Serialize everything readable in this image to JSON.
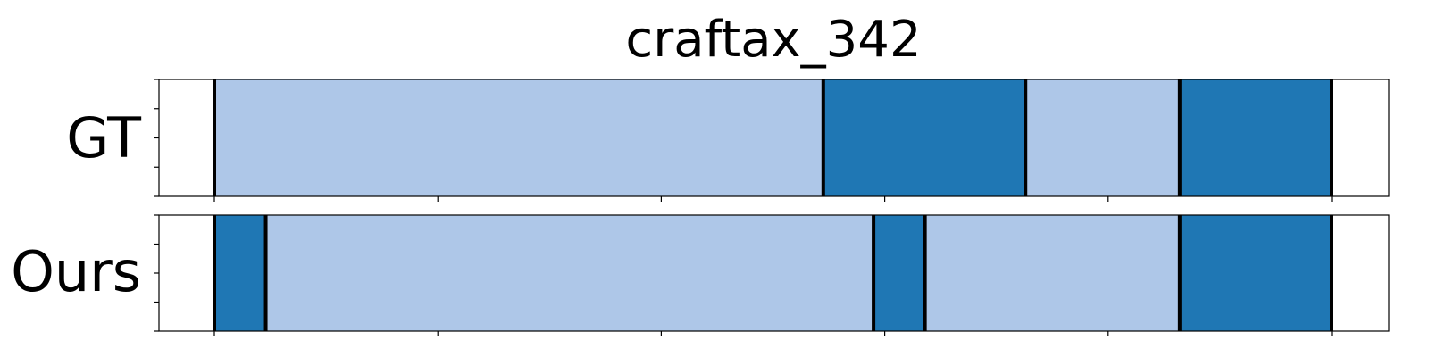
{
  "chart_data": {
    "type": "segmentation",
    "title": "craftax_342",
    "xlim": [
      0,
      100
    ],
    "xticks": [
      0,
      20,
      40,
      60,
      80,
      100
    ],
    "colors": {
      "light": "#aec7e8",
      "dark": "#1f77b4",
      "boundary": "#000000"
    },
    "rows": [
      {
        "label": "GT",
        "segments": [
          {
            "start": 0,
            "end": 54.5,
            "shade": "light"
          },
          {
            "start": 54.5,
            "end": 72.6,
            "shade": "dark"
          },
          {
            "start": 72.6,
            "end": 86.4,
            "shade": "light"
          },
          {
            "start": 86.4,
            "end": 100,
            "shade": "dark"
          }
        ]
      },
      {
        "label": "Ours",
        "segments": [
          {
            "start": 0,
            "end": 4.6,
            "shade": "dark"
          },
          {
            "start": 4.6,
            "end": 59.0,
            "shade": "light"
          },
          {
            "start": 59.0,
            "end": 63.6,
            "shade": "dark"
          },
          {
            "start": 63.6,
            "end": 86.4,
            "shade": "light"
          },
          {
            "start": 86.4,
            "end": 100,
            "shade": "dark"
          }
        ]
      }
    ]
  }
}
